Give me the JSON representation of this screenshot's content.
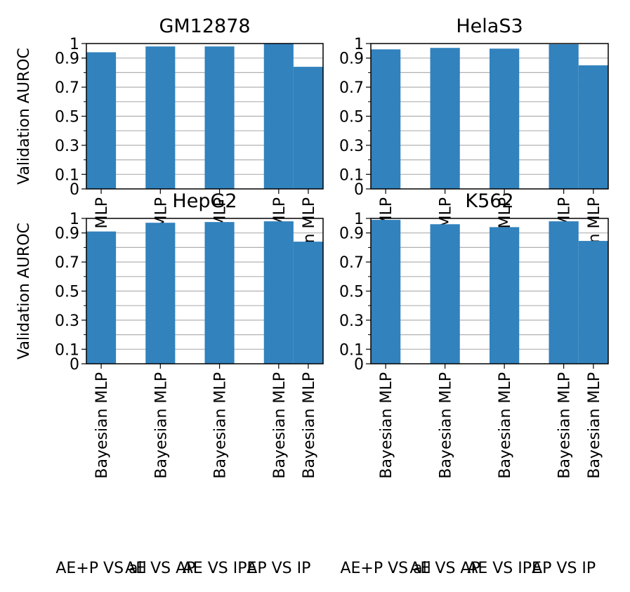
{
  "chart_data": [
    {
      "type": "bar",
      "title": "GM12878",
      "ylabel": "Validation AUROC",
      "categories": [
        "Bayesian MLP",
        "Bayesian MLP",
        "Bayesian MLP",
        "Bayesian MLP",
        "Bayesian MLP"
      ],
      "values": [
        0.94,
        0.98,
        0.98,
        1.0,
        0.84
      ],
      "ylim": [
        0,
        1
      ],
      "yticks": [
        "0",
        "0.1",
        "0.3",
        "0.5",
        "0.7",
        "0.9",
        "1"
      ],
      "grid": true,
      "bar_color": "#3182bd"
    },
    {
      "type": "bar",
      "title": "HelaS3",
      "ylabel": "",
      "categories": [
        "Bayesian MLP",
        "Bayesian MLP",
        "Bayesian MLP",
        "Bayesian MLP",
        "Bayesian MLP"
      ],
      "values": [
        0.96,
        0.97,
        0.965,
        0.995,
        0.85
      ],
      "ylim": [
        0,
        1
      ],
      "yticks": [
        "0",
        "0.1",
        "0.3",
        "0.5",
        "0.7",
        "0.9",
        "1"
      ],
      "grid": true,
      "bar_color": "#3182bd"
    },
    {
      "type": "bar",
      "title": "HepG2",
      "ylabel": "Validation AUROC",
      "categories": [
        "Bayesian MLP",
        "Bayesian MLP",
        "Bayesian MLP",
        "Bayesian MLP",
        "Bayesian MLP"
      ],
      "values": [
        0.91,
        0.97,
        0.975,
        0.98,
        0.84
      ],
      "ylim": [
        0,
        1
      ],
      "yticks": [
        "0",
        "0.1",
        "0.3",
        "0.5",
        "0.7",
        "0.9",
        "1"
      ],
      "grid": true,
      "bar_color": "#3182bd"
    },
    {
      "type": "bar",
      "title": "K562",
      "ylabel": "",
      "categories": [
        "Bayesian MLP",
        "Bayesian MLP",
        "Bayesian MLP",
        "Bayesian MLP",
        "Bayesian MLP"
      ],
      "values": [
        0.99,
        0.96,
        0.94,
        0.98,
        0.845
      ],
      "ylim": [
        0,
        1
      ],
      "yticks": [
        "0",
        "0.1",
        "0.3",
        "0.5",
        "0.7",
        "0.9",
        "1"
      ],
      "grid": true,
      "bar_color": "#3182bd"
    }
  ],
  "group_labels_left": [
    "AE+P VS all",
    "AE VS AP",
    "AE VS IPE",
    "AP VS IP"
  ],
  "group_labels_right": [
    "AE+P VS all",
    "AE VS AP",
    "AE VS IPE",
    "AP VS IP"
  ]
}
